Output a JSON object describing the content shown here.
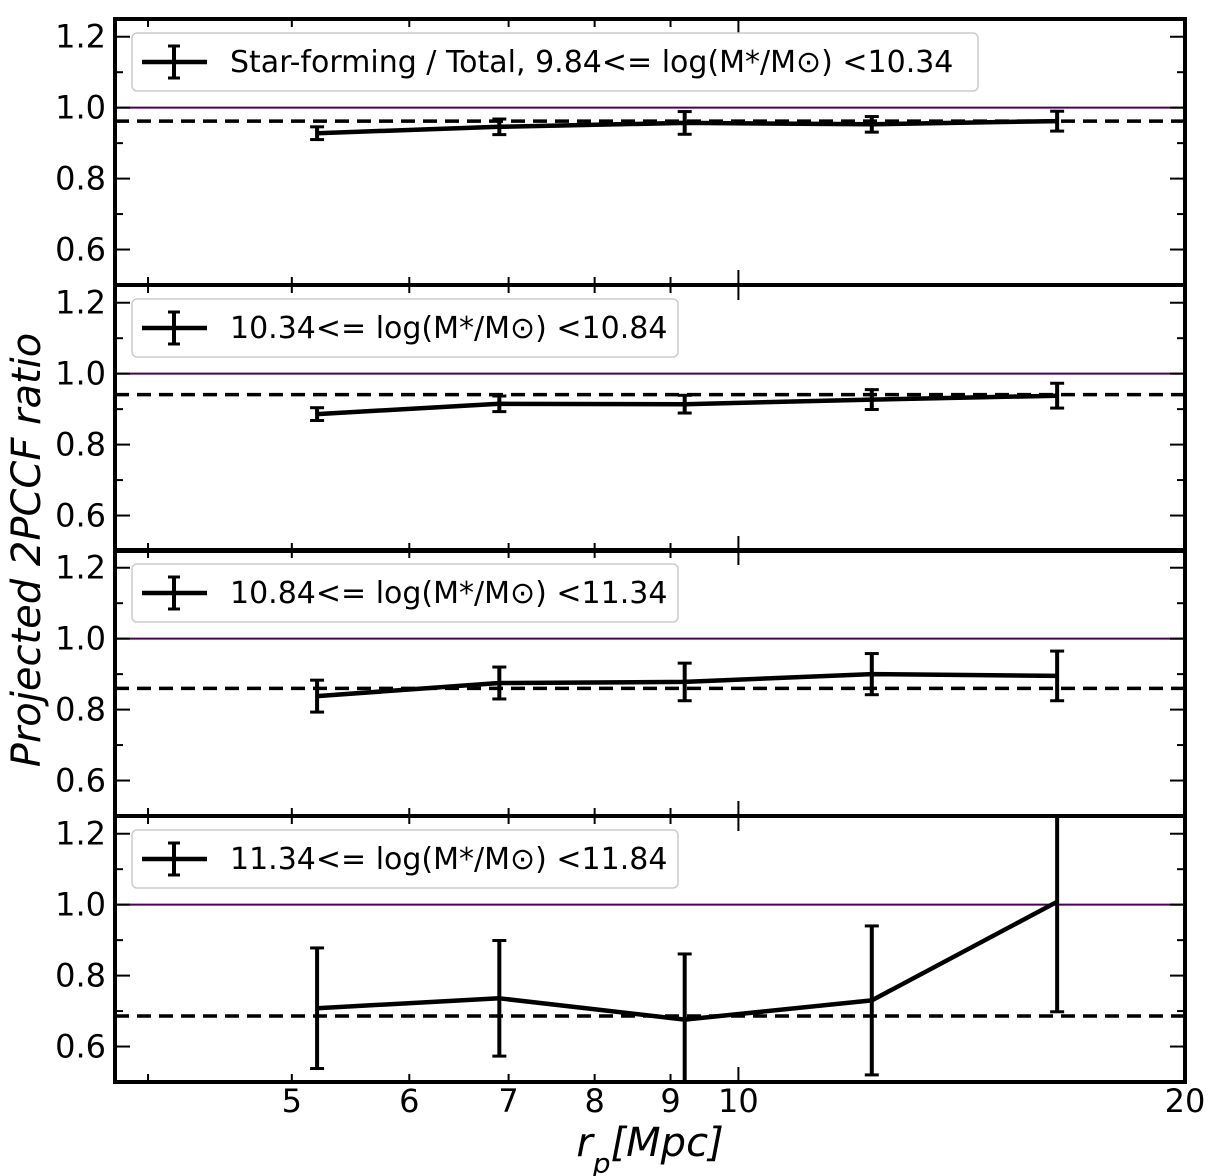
{
  "chart_data": {
    "type": "line",
    "ylabel": "Projected 2PCCF ratio",
    "xlabel": "r_p[Mpc]",
    "xscale": "log",
    "xlim": [
      3.8,
      20
    ],
    "ylim": [
      0.5,
      1.25
    ],
    "x_ticks": [
      5,
      6,
      7,
      8,
      9,
      10,
      20
    ],
    "y_ticks": [
      0.6,
      0.8,
      1.0,
      1.2
    ],
    "legend_location": "upper-left",
    "grid": false,
    "reference_line": {
      "y": 1.0,
      "color": "#4b0055"
    },
    "panels": [
      {
        "legend": "Star-forming / Total, 9.84<= log(M*/M⊙) <10.34",
        "x": [
          5.2,
          6.9,
          9.2,
          12.3,
          16.4
        ],
        "y": [
          0.928,
          0.946,
          0.957,
          0.953,
          0.962
        ],
        "yerr": [
          0.018,
          0.022,
          0.032,
          0.022,
          0.028
        ],
        "mean": 0.962
      },
      {
        "legend": "10.34<= log(M*/M⊙) <10.84",
        "x": [
          5.2,
          6.9,
          9.2,
          12.3,
          16.4
        ],
        "y": [
          0.886,
          0.915,
          0.914,
          0.927,
          0.938
        ],
        "yerr": [
          0.018,
          0.022,
          0.025,
          0.028,
          0.035
        ],
        "mean": 0.941
      },
      {
        "legend": "10.84<= log(M*/M⊙) <11.34",
        "x": [
          5.2,
          6.9,
          9.2,
          12.3,
          16.4
        ],
        "y": [
          0.838,
          0.875,
          0.878,
          0.9,
          0.895
        ],
        "yerr": [
          0.045,
          0.045,
          0.053,
          0.058,
          0.07
        ],
        "mean": 0.86
      },
      {
        "legend": "11.34<= log(M*/M⊙) <11.84",
        "x": [
          5.2,
          6.9,
          9.2,
          12.3,
          16.4
        ],
        "y": [
          0.708,
          0.736,
          0.676,
          0.73,
          1.008
        ],
        "yerr": [
          0.17,
          0.163,
          0.185,
          0.21,
          0.31
        ],
        "mean": 0.686
      }
    ]
  }
}
